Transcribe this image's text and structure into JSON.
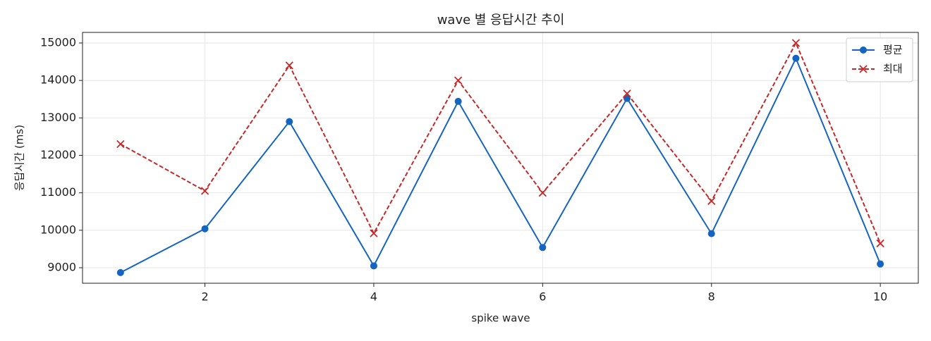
{
  "chart_data": {
    "type": "line",
    "title": "wave 별 응답시간 추이",
    "x_label": "spike wave",
    "y_label": "응답시간 (ms)",
    "x": [
      1,
      2,
      3,
      4,
      5,
      6,
      7,
      8,
      9,
      10
    ],
    "series": [
      {
        "name": "평균",
        "color": "#1565c0",
        "marker": "circle",
        "dash": "solid",
        "values": [
          8870,
          10040,
          12900,
          9050,
          13440,
          9540,
          13520,
          9910,
          14590,
          9100
        ]
      },
      {
        "name": "최대",
        "color": "#c62828",
        "marker": "x",
        "dash": "dashed",
        "values": [
          12300,
          11050,
          14400,
          9920,
          14000,
          11000,
          13650,
          10780,
          15000,
          9650
        ]
      }
    ],
    "xlim": [
      0.55,
      10.45
    ],
    "xticks": [
      2,
      4,
      6,
      8,
      10
    ],
    "ylim": [
      8586,
      15282
    ],
    "yticks": [
      9000,
      10000,
      11000,
      12000,
      13000,
      14000,
      15000
    ],
    "grid": true,
    "legend": "upper right"
  }
}
